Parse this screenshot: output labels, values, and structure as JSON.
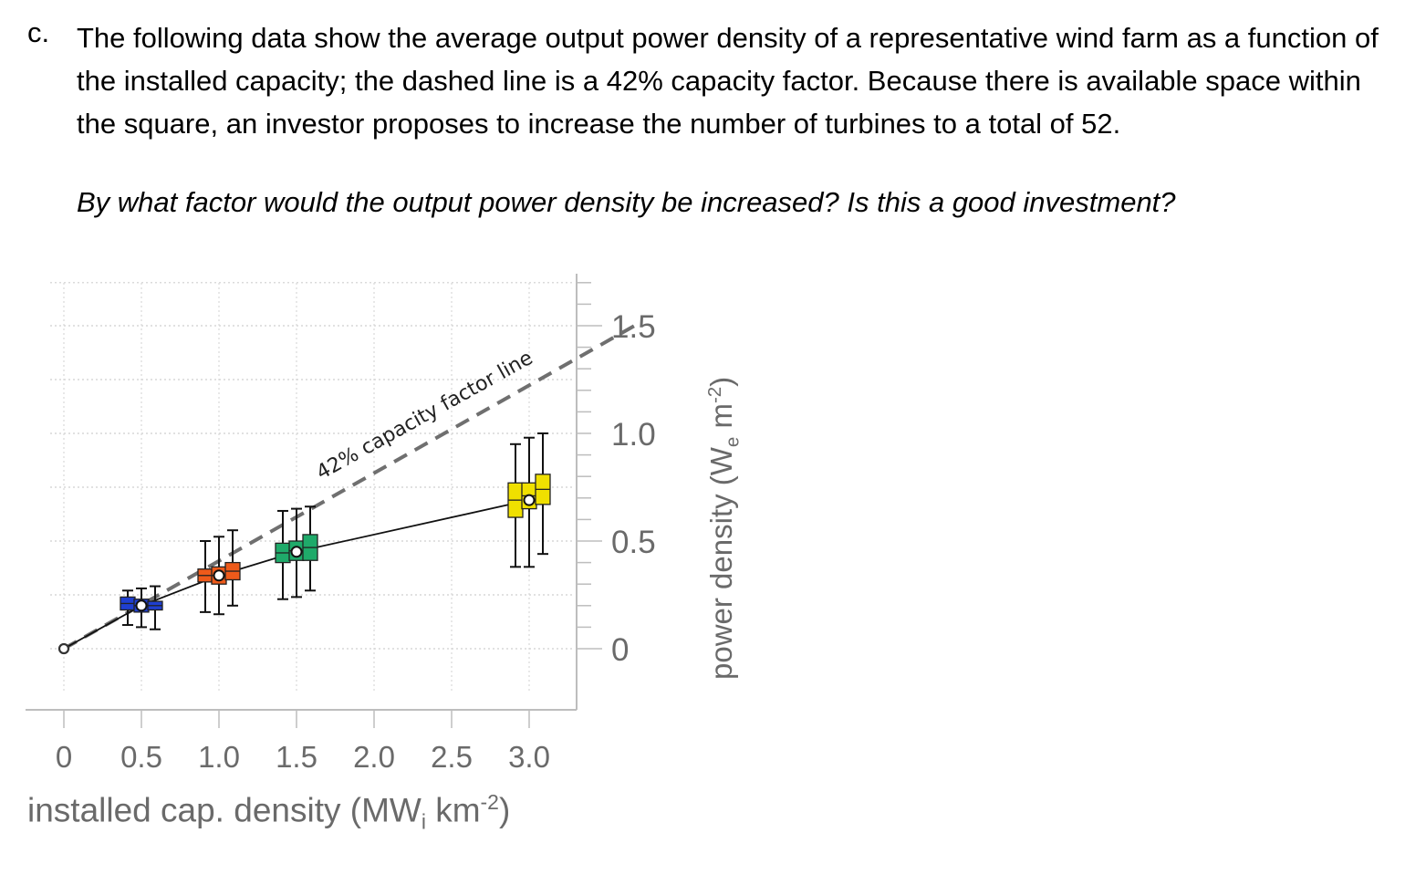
{
  "question": {
    "label": "c.",
    "text": "The following data show the average output power density of a representative wind farm as a function of the installed capacity; the dashed line is a 42% capacity factor. Because there is available space within the square, an investor proposes to increase the number of turbines to a total of 52.",
    "ask": "By what factor would the output power density be increased?  Is this a good investment?"
  },
  "chart_data": {
    "type": "box",
    "xlabel": {
      "main": "installed cap. density (MW",
      "sub": "i",
      "mid": " km",
      "sup": "-2",
      "end": ")"
    },
    "ylabel": {
      "main": "power density (W",
      "sub": "e",
      "mid": " m",
      "sup": "-2",
      "end": ")"
    },
    "x_ticks": [
      "0",
      "0.5",
      "1.0",
      "1.5",
      "2.0",
      "2.5",
      "3.0"
    ],
    "y_ticks": [
      "0",
      "0.5",
      "1.0",
      "1.5"
    ],
    "xlim": [
      0,
      3.3
    ],
    "ylim": [
      0,
      1.75
    ],
    "annotation": "42% capacity factor line",
    "reference_line": {
      "slope": 0.42,
      "x_range": [
        0,
        3.3
      ]
    },
    "mean_line": {
      "x": [
        0,
        0.5,
        1.0,
        1.5,
        3.0
      ],
      "y": [
        0,
        0.2,
        0.34,
        0.45,
        0.69
      ]
    },
    "groups": [
      {
        "x": 0.5,
        "mean": 0.2,
        "color": "#1f3fd0",
        "boxes": [
          {
            "q1": 0.18,
            "q3": 0.24,
            "wlo": 0.11,
            "whi": 0.27
          },
          {
            "q1": 0.17,
            "q3": 0.23,
            "wlo": 0.1,
            "whi": 0.28
          },
          {
            "q1": 0.18,
            "q3": 0.22,
            "wlo": 0.09,
            "whi": 0.29
          }
        ]
      },
      {
        "x": 1.0,
        "mean": 0.34,
        "color": "#ee5a1a",
        "boxes": [
          {
            "q1": 0.31,
            "q3": 0.37,
            "wlo": 0.17,
            "whi": 0.5
          },
          {
            "q1": 0.3,
            "q3": 0.38,
            "wlo": 0.16,
            "whi": 0.52
          },
          {
            "q1": 0.32,
            "q3": 0.4,
            "wlo": 0.2,
            "whi": 0.55
          }
        ]
      },
      {
        "x": 1.5,
        "mean": 0.45,
        "color": "#1faa6a",
        "boxes": [
          {
            "q1": 0.4,
            "q3": 0.49,
            "wlo": 0.23,
            "whi": 0.64
          },
          {
            "q1": 0.41,
            "q3": 0.5,
            "wlo": 0.24,
            "whi": 0.65
          },
          {
            "q1": 0.41,
            "q3": 0.53,
            "wlo": 0.27,
            "whi": 0.66
          }
        ]
      },
      {
        "x": 3.0,
        "mean": 0.69,
        "color": "#f0e000",
        "boxes": [
          {
            "q1": 0.61,
            "q3": 0.77,
            "wlo": 0.38,
            "whi": 0.95
          },
          {
            "q1": 0.65,
            "q3": 0.77,
            "wlo": 0.38,
            "whi": 0.98
          },
          {
            "q1": 0.67,
            "q3": 0.81,
            "wlo": 0.44,
            "whi": 1.0
          }
        ]
      }
    ]
  }
}
